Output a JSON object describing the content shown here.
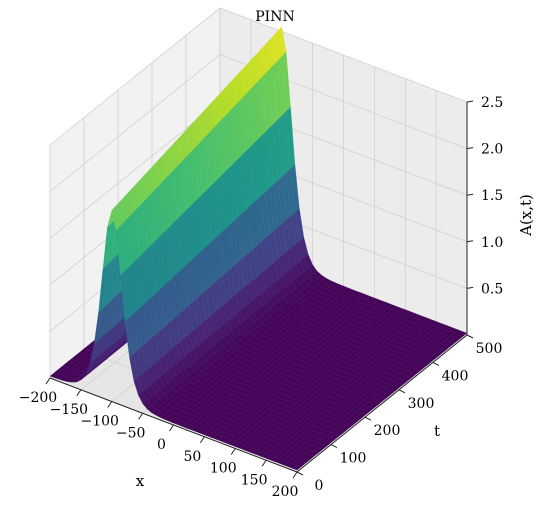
{
  "chart_data": {
    "type": "surface",
    "title": "PINN",
    "xlabel": "x",
    "ylabel": "t",
    "zlabel": "A(x,t)",
    "xlim": [
      -200,
      200
    ],
    "ylim": [
      0,
      500
    ],
    "zlim": [
      0.0,
      2.5
    ],
    "x_ticks": [
      "−200",
      "−150",
      "−100",
      "−50",
      "0",
      "50",
      "100",
      "150",
      "200"
    ],
    "y_ticks": [
      "0",
      "100",
      "200",
      "300",
      "400",
      "500"
    ],
    "z_ticks": [
      "0.5",
      "1.0",
      "1.5",
      "2.0",
      "2.5"
    ],
    "colormap": "viridis",
    "grid": true,
    "surface_model": {
      "description": "single soliton peak centred near x = -100",
      "peak_x": -100,
      "peak_height_start": 2.05,
      "peak_height_end": 2.55,
      "width": 22,
      "background": 0.02
    }
  }
}
